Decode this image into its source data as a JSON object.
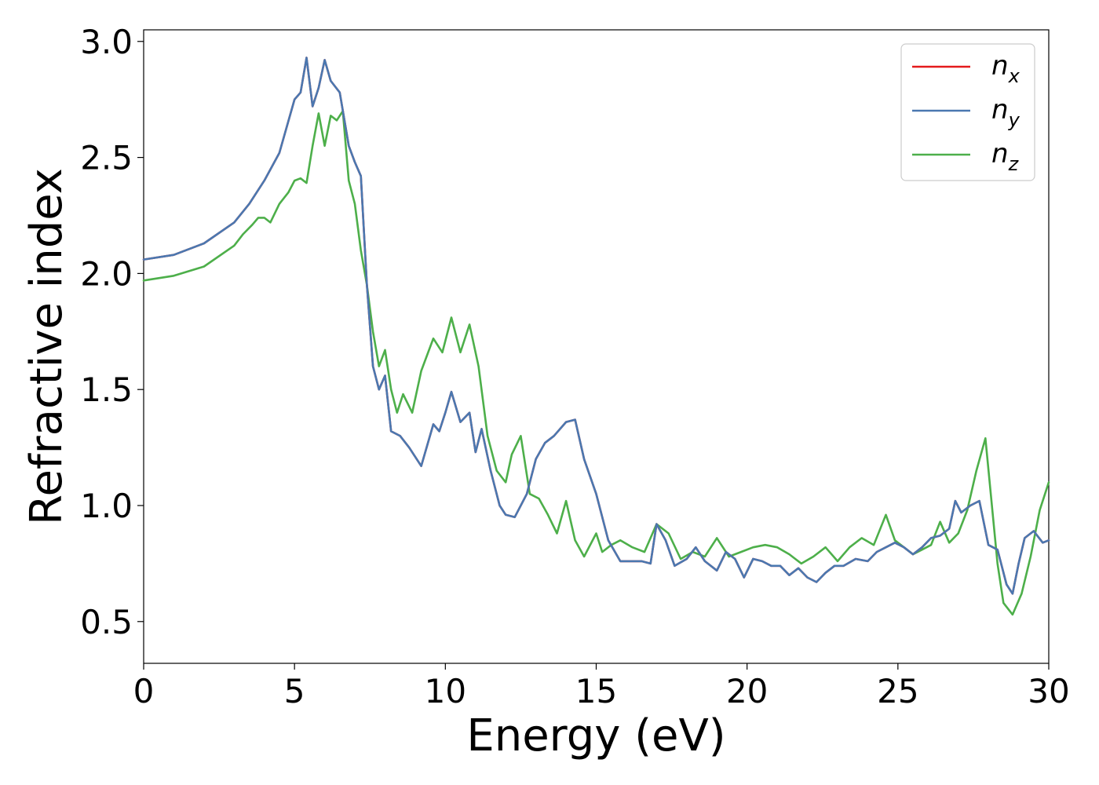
{
  "chart_data": {
    "type": "line",
    "xlabel": "Energy (eV)",
    "ylabel": "Refractive index",
    "xlim": [
      0,
      30
    ],
    "ylim": [
      0.32,
      3.05
    ],
    "xticks": [
      "0",
      "5",
      "10",
      "15",
      "20",
      "25",
      "30"
    ],
    "yticks": [
      "0.5",
      "1.0",
      "1.5",
      "2.0",
      "2.5",
      "3.0"
    ],
    "grid": false,
    "legend_position": "top-right",
    "series": [
      {
        "name": "n_x",
        "label_main": "n",
        "label_sub": "x",
        "color": "#e41a1c",
        "x": [
          0,
          1,
          2,
          3,
          3.5,
          4,
          4.5,
          5,
          5.2,
          5.4,
          5.6,
          5.8,
          6,
          6.2,
          6.5,
          6.8,
          7,
          7.2,
          7.4,
          7.6,
          7.8,
          8,
          8.2,
          8.5,
          8.8,
          9.2,
          9.6,
          9.8,
          10,
          10.2,
          10.5,
          10.8,
          11,
          11.2,
          11.5,
          11.8,
          12,
          12.3,
          12.7,
          13,
          13.3,
          13.6,
          14,
          14.3,
          14.6,
          15,
          15.4,
          15.8,
          16.2,
          16.5,
          16.8,
          17,
          17.3,
          17.6,
          18,
          18.3,
          18.6,
          19,
          19.3,
          19.6,
          19.9,
          20.2,
          20.5,
          20.8,
          21.1,
          21.4,
          21.7,
          22,
          22.3,
          22.6,
          22.9,
          23.2,
          23.6,
          24,
          24.3,
          24.6,
          24.9,
          25.2,
          25.5,
          25.8,
          26.1,
          26.4,
          26.7,
          26.9,
          27.1,
          27.4,
          27.7,
          28,
          28.3,
          28.6,
          28.8,
          29,
          29.2,
          29.5,
          29.8,
          30
        ],
        "y": [
          2.06,
          2.08,
          2.13,
          2.22,
          2.3,
          2.4,
          2.52,
          2.75,
          2.78,
          2.93,
          2.72,
          2.8,
          2.92,
          2.83,
          2.78,
          2.55,
          2.48,
          2.42,
          1.95,
          1.6,
          1.5,
          1.56,
          1.32,
          1.3,
          1.25,
          1.17,
          1.35,
          1.32,
          1.4,
          1.49,
          1.36,
          1.4,
          1.23,
          1.33,
          1.15,
          1.0,
          0.96,
          0.95,
          1.05,
          1.2,
          1.27,
          1.3,
          1.36,
          1.37,
          1.2,
          1.05,
          0.85,
          0.76,
          0.76,
          0.76,
          0.75,
          0.92,
          0.85,
          0.74,
          0.77,
          0.82,
          0.76,
          0.72,
          0.8,
          0.77,
          0.69,
          0.77,
          0.76,
          0.74,
          0.74,
          0.7,
          0.73,
          0.69,
          0.67,
          0.71,
          0.74,
          0.74,
          0.77,
          0.76,
          0.8,
          0.82,
          0.84,
          0.82,
          0.79,
          0.82,
          0.86,
          0.87,
          0.9,
          1.02,
          0.97,
          1.0,
          1.02,
          0.83,
          0.81,
          0.66,
          0.62,
          0.75,
          0.86,
          0.89,
          0.84,
          0.85
        ]
      },
      {
        "name": "n_y",
        "label_main": "n",
        "label_sub": "y",
        "color": "#4a78b0",
        "x": [
          0,
          1,
          2,
          3,
          3.5,
          4,
          4.5,
          5,
          5.2,
          5.4,
          5.6,
          5.8,
          6,
          6.2,
          6.5,
          6.8,
          7,
          7.2,
          7.4,
          7.6,
          7.8,
          8,
          8.2,
          8.5,
          8.8,
          9.2,
          9.6,
          9.8,
          10,
          10.2,
          10.5,
          10.8,
          11,
          11.2,
          11.5,
          11.8,
          12,
          12.3,
          12.7,
          13,
          13.3,
          13.6,
          14,
          14.3,
          14.6,
          15,
          15.4,
          15.8,
          16.2,
          16.5,
          16.8,
          17,
          17.3,
          17.6,
          18,
          18.3,
          18.6,
          19,
          19.3,
          19.6,
          19.9,
          20.2,
          20.5,
          20.8,
          21.1,
          21.4,
          21.7,
          22,
          22.3,
          22.6,
          22.9,
          23.2,
          23.6,
          24,
          24.3,
          24.6,
          24.9,
          25.2,
          25.5,
          25.8,
          26.1,
          26.4,
          26.7,
          26.9,
          27.1,
          27.4,
          27.7,
          28,
          28.3,
          28.6,
          28.8,
          29,
          29.2,
          29.5,
          29.8,
          30
        ],
        "y": [
          2.06,
          2.08,
          2.13,
          2.22,
          2.3,
          2.4,
          2.52,
          2.75,
          2.78,
          2.93,
          2.72,
          2.8,
          2.92,
          2.83,
          2.78,
          2.55,
          2.48,
          2.42,
          1.95,
          1.6,
          1.5,
          1.56,
          1.32,
          1.3,
          1.25,
          1.17,
          1.35,
          1.32,
          1.4,
          1.49,
          1.36,
          1.4,
          1.23,
          1.33,
          1.15,
          1.0,
          0.96,
          0.95,
          1.05,
          1.2,
          1.27,
          1.3,
          1.36,
          1.37,
          1.2,
          1.05,
          0.85,
          0.76,
          0.76,
          0.76,
          0.75,
          0.92,
          0.85,
          0.74,
          0.77,
          0.82,
          0.76,
          0.72,
          0.8,
          0.77,
          0.69,
          0.77,
          0.76,
          0.74,
          0.74,
          0.7,
          0.73,
          0.69,
          0.67,
          0.71,
          0.74,
          0.74,
          0.77,
          0.76,
          0.8,
          0.82,
          0.84,
          0.82,
          0.79,
          0.82,
          0.86,
          0.87,
          0.9,
          1.02,
          0.97,
          1.0,
          1.02,
          0.83,
          0.81,
          0.66,
          0.62,
          0.75,
          0.86,
          0.89,
          0.84,
          0.85
        ]
      },
      {
        "name": "n_z",
        "label_main": "n",
        "label_sub": "z",
        "color": "#4daf4a",
        "x": [
          0,
          1,
          2,
          3,
          3.3,
          3.6,
          3.8,
          4,
          4.2,
          4.5,
          4.8,
          5,
          5.2,
          5.4,
          5.6,
          5.8,
          6,
          6.2,
          6.4,
          6.6,
          6.8,
          7,
          7.2,
          7.4,
          7.6,
          7.8,
          8,
          8.2,
          8.4,
          8.6,
          8.9,
          9.2,
          9.6,
          9.9,
          10.2,
          10.5,
          10.8,
          11.1,
          11.4,
          11.7,
          12,
          12.2,
          12.5,
          12.8,
          13.1,
          13.4,
          13.7,
          14,
          14.3,
          14.6,
          15,
          15.2,
          15.5,
          15.8,
          16.2,
          16.6,
          17,
          17.4,
          17.8,
          18.2,
          18.6,
          19,
          19.4,
          19.8,
          20.2,
          20.6,
          21,
          21.4,
          21.8,
          22.2,
          22.6,
          23,
          23.4,
          23.8,
          24.2,
          24.6,
          24.9,
          25.2,
          25.5,
          25.8,
          26.1,
          26.4,
          26.7,
          27,
          27.3,
          27.6,
          27.9,
          28.1,
          28.3,
          28.5,
          28.8,
          29.1,
          29.4,
          29.7,
          30
        ],
        "y": [
          1.97,
          1.99,
          2.03,
          2.12,
          2.17,
          2.21,
          2.24,
          2.24,
          2.22,
          2.3,
          2.35,
          2.4,
          2.41,
          2.39,
          2.55,
          2.69,
          2.55,
          2.68,
          2.66,
          2.7,
          2.4,
          2.3,
          2.1,
          1.95,
          1.75,
          1.6,
          1.67,
          1.5,
          1.4,
          1.48,
          1.4,
          1.58,
          1.72,
          1.66,
          1.81,
          1.66,
          1.78,
          1.6,
          1.3,
          1.15,
          1.1,
          1.22,
          1.3,
          1.05,
          1.03,
          0.96,
          0.88,
          1.02,
          0.85,
          0.78,
          0.88,
          0.8,
          0.83,
          0.85,
          0.82,
          0.8,
          0.92,
          0.88,
          0.77,
          0.8,
          0.78,
          0.86,
          0.78,
          0.8,
          0.82,
          0.83,
          0.82,
          0.79,
          0.75,
          0.78,
          0.82,
          0.76,
          0.82,
          0.86,
          0.83,
          0.96,
          0.85,
          0.82,
          0.79,
          0.81,
          0.83,
          0.93,
          0.84,
          0.88,
          0.98,
          1.15,
          1.29,
          1.02,
          0.75,
          0.58,
          0.53,
          0.62,
          0.78,
          0.98,
          1.1
        ]
      }
    ]
  }
}
